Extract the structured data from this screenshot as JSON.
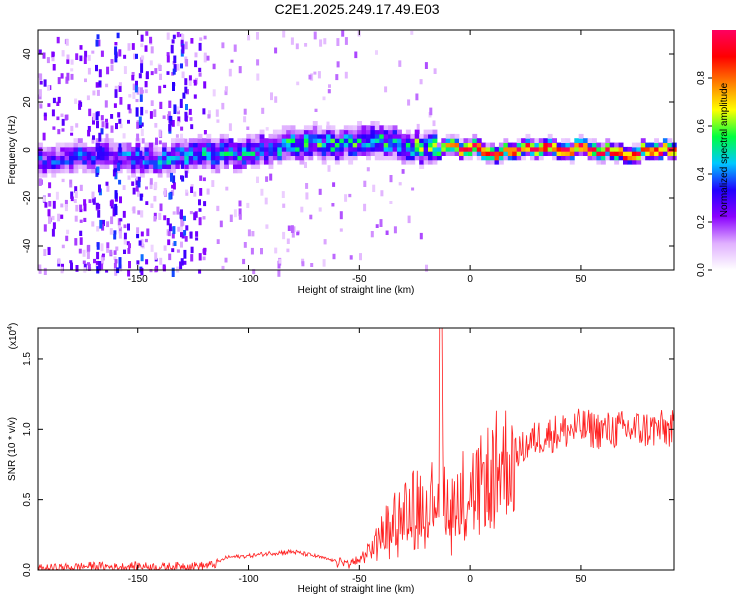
{
  "title": "C2E1.2025.249.17.49.E03",
  "chart_data": [
    {
      "type": "heatmap",
      "name": "spectrogram",
      "xlabel": "Height of straight line (km)",
      "ylabel": "Frequency (Hz)",
      "xlim": [
        -195,
        92
      ],
      "ylim": [
        -50,
        50
      ],
      "xticks": [
        -150,
        -100,
        -50,
        0,
        50
      ],
      "xtick_labels": [
        "-150",
        "-100",
        "-50",
        "0",
        "50"
      ],
      "yticks": [
        -40,
        -20,
        0,
        20,
        40
      ],
      "ytick_labels": [
        "-40",
        "-20",
        "0",
        "20",
        "40"
      ],
      "colorbar": {
        "label": "Normalized spectral amplitude",
        "range": [
          0,
          1
        ],
        "ticks": [
          0.0,
          0.2,
          0.4,
          0.6,
          0.8
        ],
        "tick_labels": [
          "0.0",
          "0.2",
          "0.4",
          "0.6",
          "0.8"
        ],
        "colors": [
          "#ffffff",
          "#e0b0ff",
          "#8a00ff",
          "#2000ff",
          "#00c8ff",
          "#00ff40",
          "#ffff00",
          "#ff8000",
          "#ff0000",
          "#ff0060"
        ]
      },
      "ridge": {
        "x": [
          -190,
          -180,
          -170,
          -160,
          -150,
          -140,
          -130,
          -120,
          -110,
          -100,
          -90,
          -80,
          -70,
          -60,
          -50,
          -40,
          -30,
          -20,
          -15,
          -10,
          -5,
          0,
          5,
          10,
          20,
          30,
          40,
          50,
          60,
          70,
          80,
          90
        ],
        "y": [
          -4,
          -3,
          -2,
          -3,
          -4,
          -4,
          -3,
          -2,
          -1,
          0,
          1,
          2,
          3,
          2,
          4,
          3,
          2,
          1,
          0,
          1,
          1,
          2,
          0,
          -1,
          0,
          1,
          0,
          1,
          0,
          -2,
          0,
          1
        ],
        "peak_amplitude": [
          0.3,
          0.3,
          0.3,
          0.3,
          0.35,
          0.35,
          0.35,
          0.4,
          0.4,
          0.4,
          0.4,
          0.45,
          0.45,
          0.45,
          0.45,
          0.45,
          0.45,
          0.5,
          0.6,
          0.85,
          0.9,
          0.9,
          0.9,
          0.9,
          0.9,
          0.9,
          0.9,
          0.9,
          0.9,
          0.9,
          0.9,
          0.9
        ]
      }
    },
    {
      "type": "line",
      "name": "snr",
      "xlabel": "Height of straight line (km)",
      "ylabel": "SNR (10 * v/v)",
      "multiplier_label": "(x10",
      "multiplier_exp": "4",
      "xlim": [
        -195,
        92
      ],
      "ylim": [
        0,
        1.72
      ],
      "xticks": [
        -150,
        -100,
        -50,
        0,
        50
      ],
      "xtick_labels": [
        "-150",
        "-100",
        "-50",
        "0",
        "50"
      ],
      "yticks": [
        0.0,
        0.5,
        1.0,
        1.5
      ],
      "ytick_labels": [
        "0.0",
        "0.5",
        "1.0",
        "1.5"
      ],
      "color": "#ff2020",
      "series": {
        "name": "SNR",
        "x": [
          -195,
          -180,
          -170,
          -160,
          -150,
          -140,
          -130,
          -120,
          -115,
          -110,
          -100,
          -90,
          -80,
          -70,
          -60,
          -55,
          -50,
          -45,
          -40,
          -35,
          -30,
          -25,
          -20,
          -15,
          -13,
          -12,
          -10,
          -5,
          0,
          5,
          10,
          20,
          30,
          40,
          50,
          60,
          70,
          80,
          90
        ],
        "y": [
          0.01,
          0.02,
          0.03,
          0.02,
          0.03,
          0.02,
          0.03,
          0.03,
          0.04,
          0.09,
          0.1,
          0.12,
          0.13,
          0.1,
          0.06,
          0.05,
          0.07,
          0.14,
          0.26,
          0.36,
          0.42,
          0.47,
          0.5,
          0.52,
          1.74,
          0.62,
          0.48,
          0.55,
          0.6,
          0.62,
          0.72,
          0.82,
          0.94,
          0.98,
          1.01,
          0.99,
          1.0,
          1.0,
          1.0
        ]
      }
    }
  ]
}
